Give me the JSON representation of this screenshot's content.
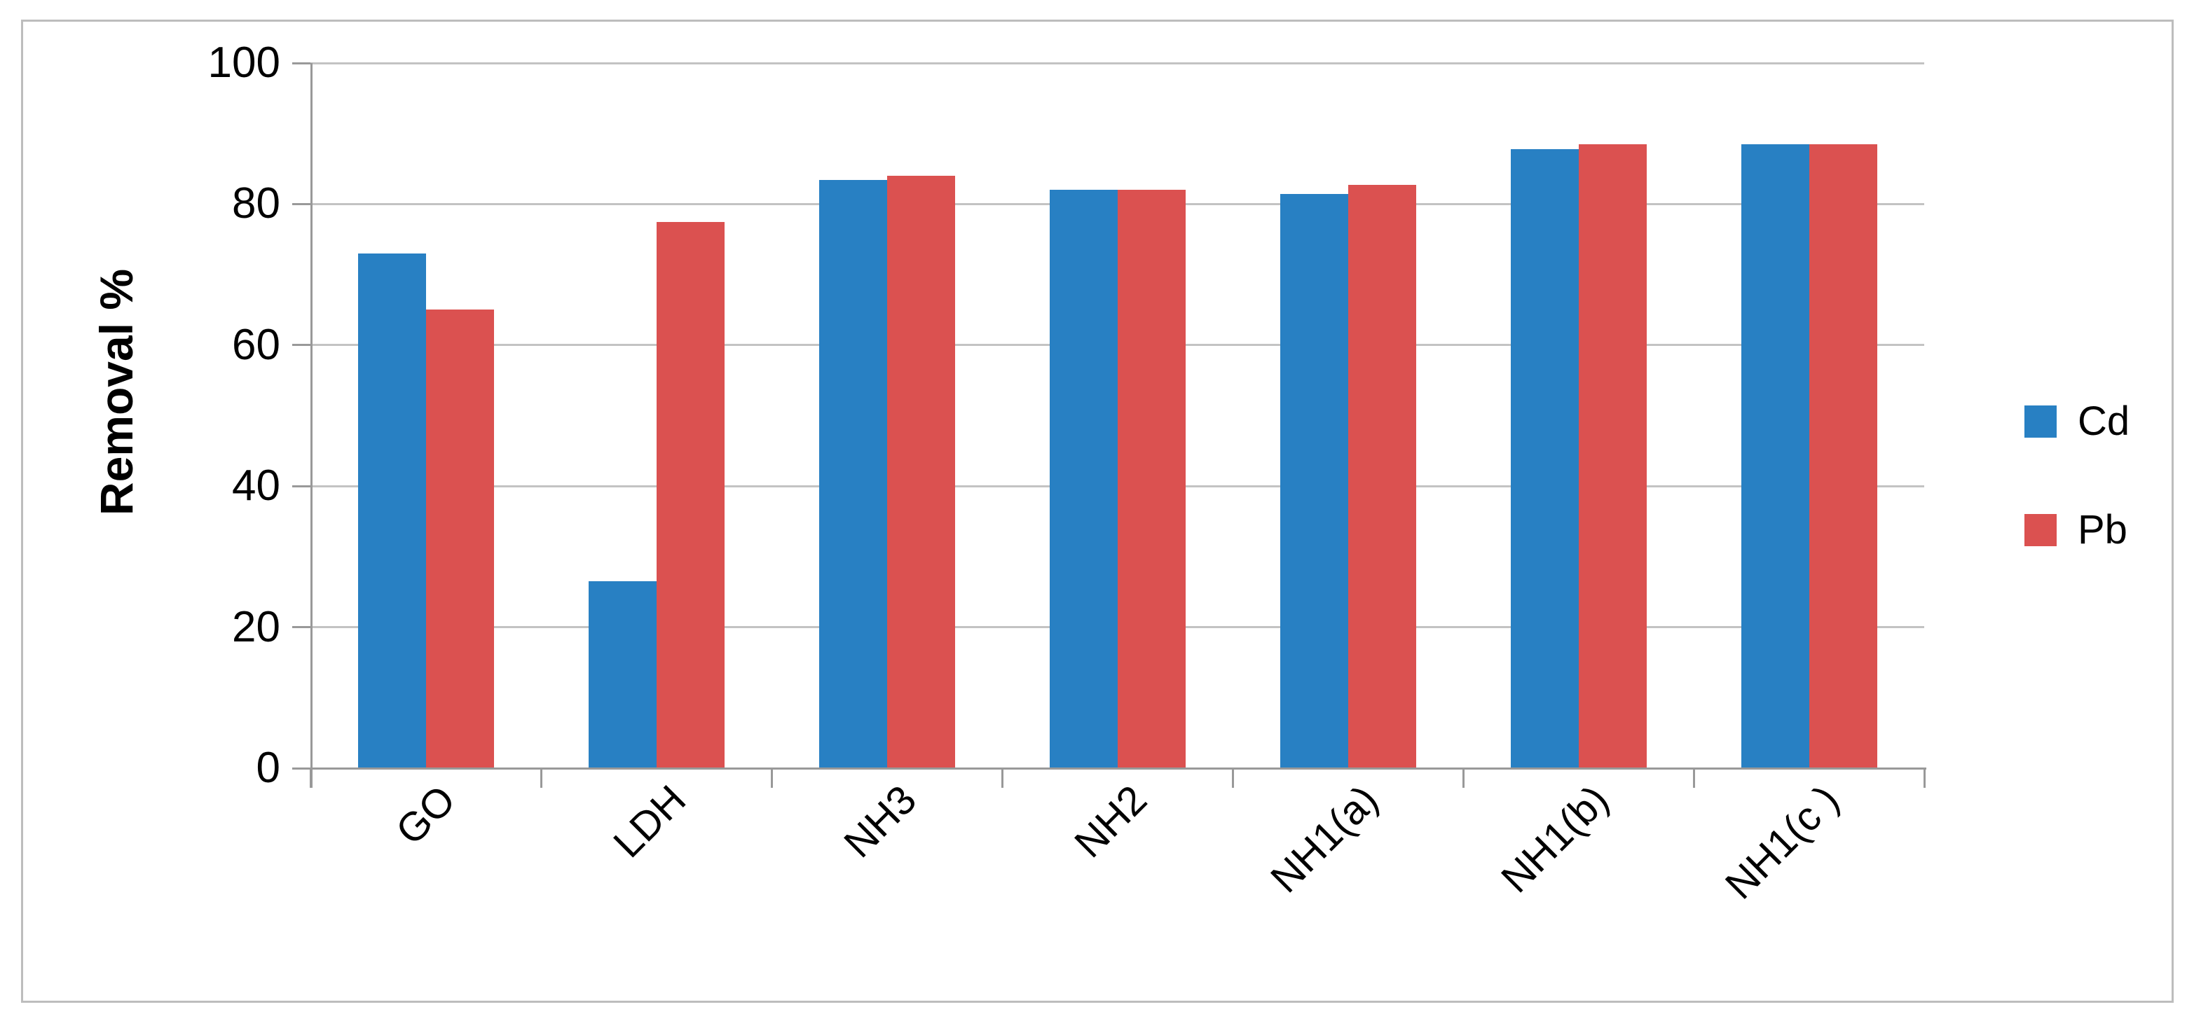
{
  "chart": {
    "y_axis_label": "Removal %",
    "legend_entries": [
      "Cd",
      "Pb"
    ]
  },
  "chart_data": {
    "type": "bar",
    "title": "",
    "xlabel": "",
    "ylabel": "Removal %",
    "categories": [
      "GO",
      "LDH",
      "NH3",
      "NH2",
      "NH1(a)",
      "NH1(b)",
      "NH1(c )"
    ],
    "series": [
      {
        "name": "Cd",
        "color": "#2880c3",
        "values": [
          73,
          26.5,
          83.4,
          82,
          81.4,
          87.8,
          88.5
        ]
      },
      {
        "name": "Pb",
        "color": "#db5150",
        "values": [
          65,
          77.5,
          84,
          82,
          82.7,
          88.5,
          88.5
        ]
      }
    ],
    "ylim": [
      0,
      100
    ],
    "yticks": [
      0,
      20,
      40,
      60,
      80,
      100
    ],
    "grid": true,
    "gridline_color": "#c3c3c3",
    "axis_color": "#999999",
    "frame_color": "#bdbdbd",
    "legend_position": "right"
  }
}
